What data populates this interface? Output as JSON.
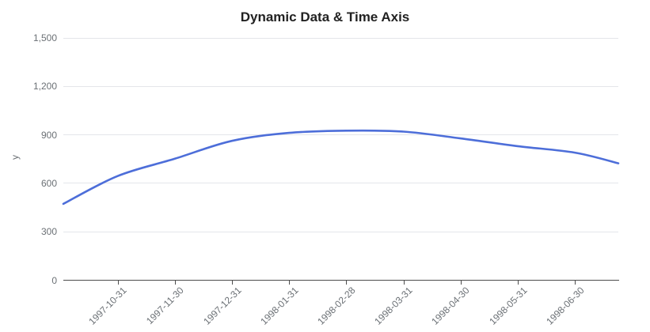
{
  "chart_data": {
    "type": "line",
    "title": "Dynamic Data & Time Axis",
    "xlabel": "",
    "ylabel": "y",
    "x_tick_labels": [
      "1997-10-31",
      "1997-11-30",
      "1997-12-31",
      "1998-01-31",
      "1998-02-28",
      "1998-03-31",
      "1998-04-30",
      "1998-05-31",
      "1998-06-30"
    ],
    "y_ticks": [
      0,
      300,
      600,
      900,
      1200,
      1500
    ],
    "y_tick_labels": [
      "0",
      "300",
      "600",
      "900",
      "1,200",
      "1,500"
    ],
    "ylim": [
      0,
      1500
    ],
    "x_range_months": [
      -0.95,
      8.76
    ],
    "grid": true,
    "legend": false,
    "series": [
      {
        "name": "y",
        "smooth": true,
        "points_month_value": [
          [
            -0.95,
            473
          ],
          [
            0,
            645
          ],
          [
            1,
            752
          ],
          [
            2,
            863
          ],
          [
            3,
            912
          ],
          [
            4,
            926
          ],
          [
            5,
            920
          ],
          [
            6,
            878
          ],
          [
            7,
            830
          ],
          [
            8,
            790
          ],
          [
            8.76,
            724
          ]
        ]
      }
    ],
    "colors": {
      "line": "#4d6ed9",
      "grid": "#e4e6ea",
      "axis": "#4d4d4d",
      "tick_label": "#6b7075",
      "title": "#222222",
      "background": "#ffffff"
    }
  }
}
